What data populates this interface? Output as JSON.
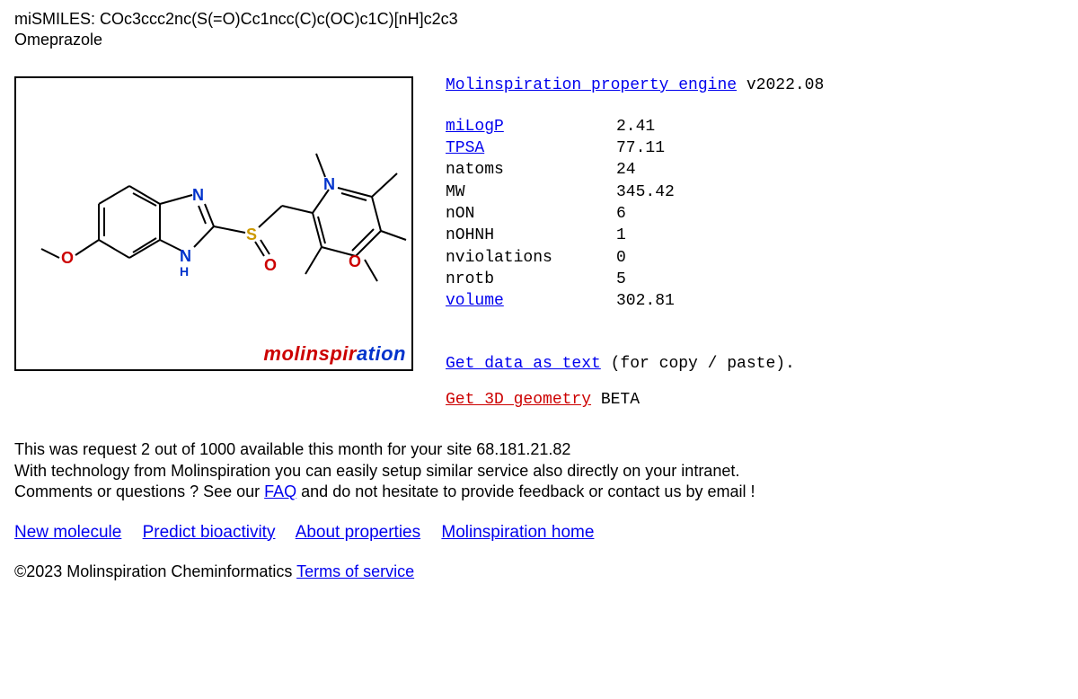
{
  "header": {
    "smiles_label": "miSMILES: ",
    "smiles_value": "COc3ccc2nc(S(=O)Cc1ncc(C)c(OC)c1C)[nH]c2c3",
    "name": "Omeprazole"
  },
  "structure": {
    "colors": {
      "C": "#000000",
      "N": "#0033cc",
      "O": "#cc0000",
      "S": "#cc9900",
      "bond": "#000000"
    },
    "bond_width": 2,
    "atom_font_size": 18,
    "logo_part1": "molinspir",
    "logo_part2": "ation"
  },
  "engine": {
    "link_text": "Molinspiration property engine",
    "version": " v2022.08"
  },
  "properties": [
    {
      "label": "miLogP",
      "value": "2.41",
      "link": true
    },
    {
      "label": "TPSA",
      "value": "77.11",
      "link": true
    },
    {
      "label": "natoms",
      "value": "24",
      "link": false
    },
    {
      "label": "MW",
      "value": "345.42",
      "link": false
    },
    {
      "label": "nON",
      "value": "6",
      "link": false
    },
    {
      "label": "nOHNH",
      "value": "1",
      "link": false
    },
    {
      "label": "nviolations",
      "value": "0",
      "link": false
    },
    {
      "label": "nrotb",
      "value": "5",
      "link": false
    },
    {
      "label": "volume",
      "value": "302.81",
      "link": true
    }
  ],
  "actions": {
    "get_text": "Get data as text",
    "get_text_suffix": " (for copy / paste).",
    "get_3d": "Get 3D geometry",
    "get_3d_suffix": " BETA"
  },
  "footer": {
    "line1": "This was request 2 out of 1000 available this month for your site 68.181.21.82",
    "line2": "With technology from Molinspiration you can easily setup similar service also directly on your intranet.",
    "line3a": "Comments or questions ? See our ",
    "faq": "FAQ",
    "line3b": " and do not hesitate to provide feedback or contact us by email !"
  },
  "nav": {
    "new_mol": "New molecule",
    "bioactivity": "Predict bioactivity",
    "about": "About properties",
    "home": "Molinspiration home"
  },
  "copyright": {
    "text": "©2023 Molinspiration Cheminformatics ",
    "tos": "Terms of service"
  }
}
